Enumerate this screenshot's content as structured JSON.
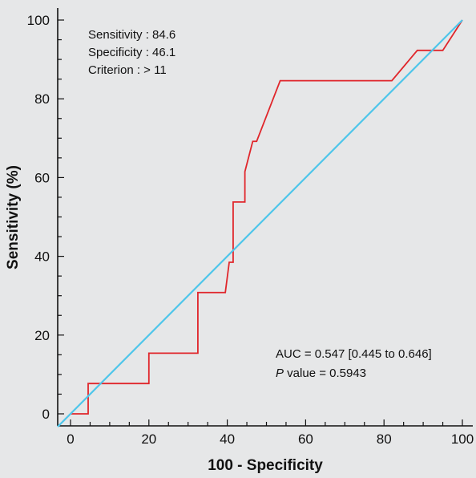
{
  "chart_data": {
    "type": "line",
    "xlabel": "100 - Specificity",
    "ylabel": "Sensitivity (%)",
    "xlim": [
      0,
      100
    ],
    "ylim": [
      0,
      100
    ],
    "x_ticks": [
      0,
      20,
      40,
      60,
      80,
      100
    ],
    "y_ticks": [
      0,
      20,
      40,
      60,
      80,
      100
    ],
    "x_tick_labels": [
      "0",
      "20",
      "40",
      "60",
      "80",
      "100"
    ],
    "y_tick_labels": [
      "0",
      "20",
      "40",
      "60",
      "80",
      "100"
    ],
    "grid": false,
    "series": [
      {
        "color": "#e0262b",
        "x": [
          0,
          4.5,
          4.5,
          20,
          20,
          32.5,
          32.5,
          39.5,
          40.5,
          40.5,
          41.5,
          41.5,
          44.5,
          44.5,
          46.5,
          47.5,
          53.5,
          82,
          88.5,
          95,
          100
        ],
        "y": [
          0,
          0,
          7.7,
          7.7,
          15.4,
          15.4,
          30.8,
          30.8,
          38.5,
          38.5,
          38.5,
          53.8,
          53.8,
          61.5,
          69.2,
          69.2,
          84.6,
          84.6,
          92.3,
          92.3,
          100
        ]
      },
      {
        "color": "#4fc6ea",
        "x": [
          0,
          100
        ],
        "y": [
          0,
          100
        ]
      }
    ],
    "annotations": {
      "top_left": [
        "Sensitivity : 84.6",
        "Specificity : 46.1",
        "Criterion : > 11"
      ],
      "auc_text": "AUC = 0.547 [0.445 to 0.646]",
      "p_label": "P",
      "p_value_text": " value = 0.5943"
    }
  }
}
